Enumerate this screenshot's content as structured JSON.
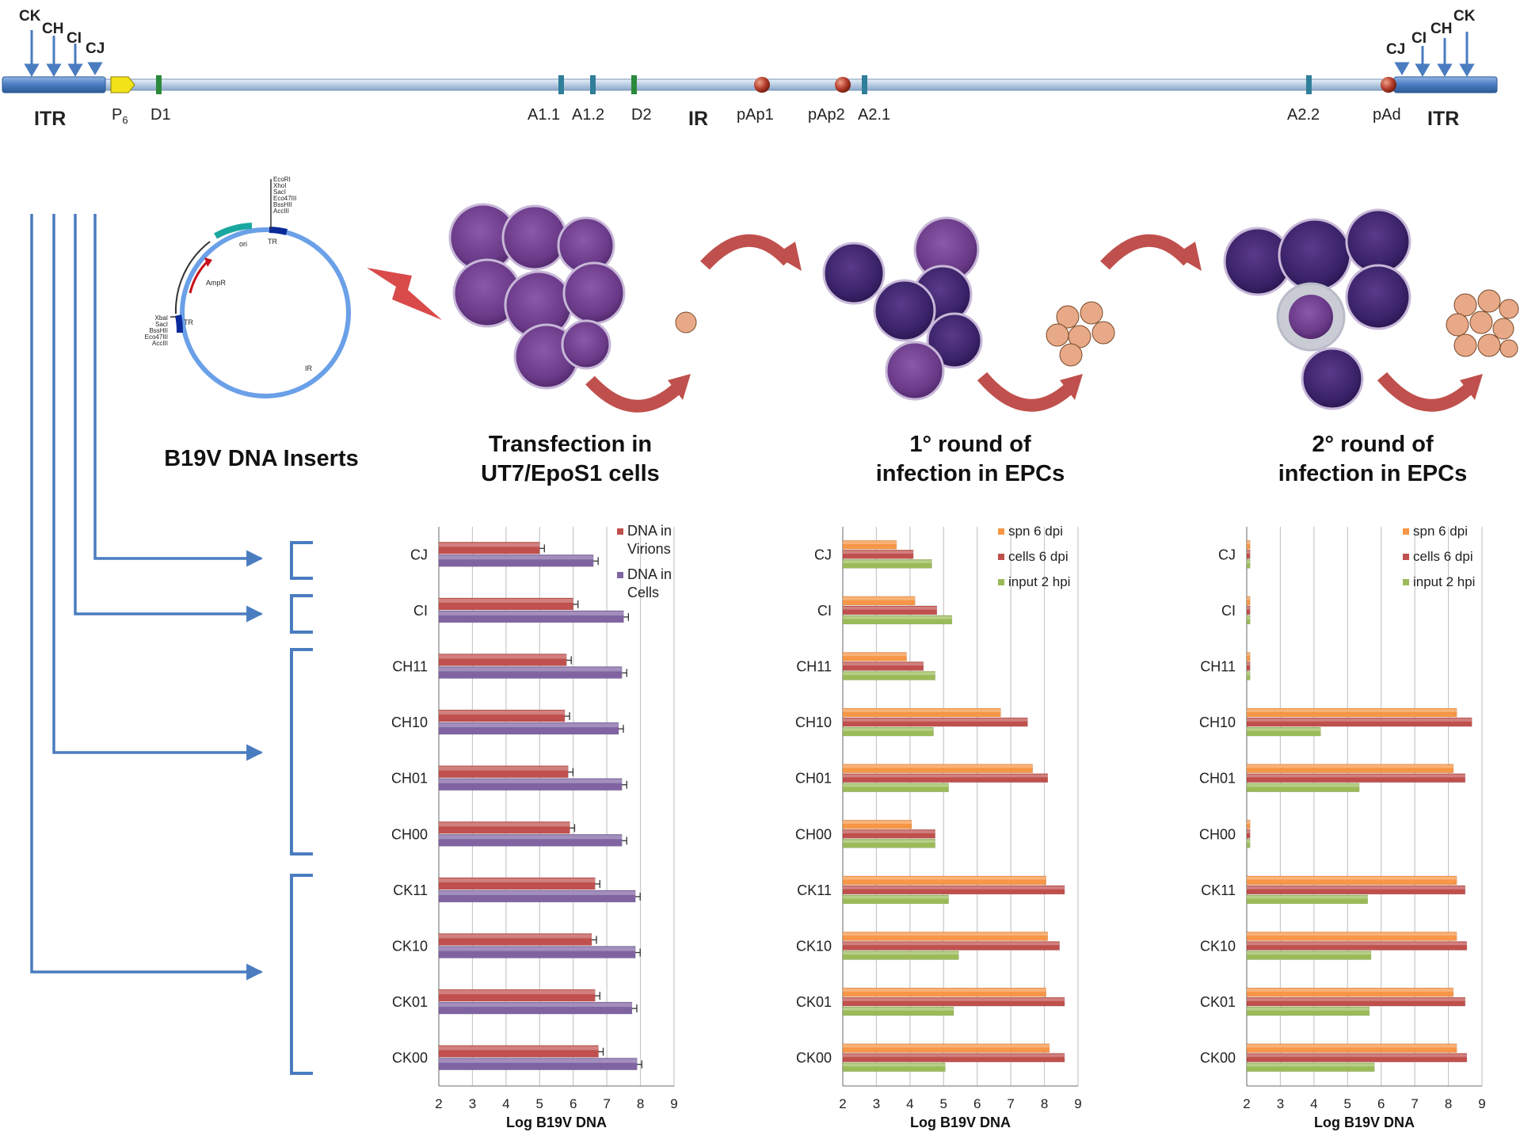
{
  "genome": {
    "itr_left": "ITR",
    "itr_right": "ITR",
    "p6": "P",
    "p6_sub": "6",
    "sites": [
      "D1",
      "A1.1",
      "A1.2",
      "D2",
      "IR",
      "pAp1",
      "pAp2",
      "A2.1",
      "A2.2",
      "pAd"
    ],
    "arrows_left": [
      "CK",
      "CH",
      "CI",
      "CJ"
    ],
    "arrows_right": [
      "CJ",
      "CI",
      "CH",
      "CK"
    ]
  },
  "plasmid": {
    "title": "B19V DNA Inserts",
    "top_sites": [
      "EcoRI",
      "XhoI",
      "SacI",
      "Eco47III",
      "BssHII",
      "AccIII"
    ],
    "left_sites": [
      "XbaI",
      "SacI",
      "BssHII",
      "Eco47III",
      "AccIII"
    ],
    "labels": {
      "ori": "ori",
      "tr_top": "TR",
      "tr_left": "TR",
      "ampr": "AmpR",
      "ir": "IR"
    }
  },
  "steps": [
    {
      "line1": "Transfection in",
      "line2": "UT7/EpoS1 cells"
    },
    {
      "line1": "1° round of",
      "line2": "infection in EPCs"
    },
    {
      "line1": "2° round of",
      "line2": "infection in EPCs"
    }
  ],
  "colors": {
    "blue": "#4a7cc0",
    "dna_virions": "#c0504d",
    "dna_cells": "#8064a2",
    "spn": "#f79646",
    "cells": "#c0504d",
    "input": "#9bbb59",
    "arrow_red": "#c0504d"
  },
  "chart_data": [
    {
      "type": "bar",
      "orientation": "horizontal",
      "categories": [
        "CJ",
        "CI",
        "CH11",
        "CH10",
        "CH01",
        "CH00",
        "CK11",
        "CK10",
        "CK01",
        "CK00"
      ],
      "series": [
        {
          "name": "DNA in Virions",
          "values": [
            5.0,
            6.0,
            5.8,
            5.75,
            5.85,
            5.9,
            6.65,
            6.55,
            6.65,
            6.75
          ]
        },
        {
          "name": "DNA in Cells",
          "values": [
            6.6,
            7.5,
            7.45,
            7.35,
            7.45,
            7.45,
            7.85,
            7.85,
            7.75,
            7.9
          ]
        }
      ],
      "xlabel": "Log B19V DNA",
      "xlim": [
        2,
        9
      ],
      "ticks": [
        2,
        3,
        4,
        5,
        6,
        7,
        8,
        9
      ],
      "legend": "top-right",
      "grid": true,
      "error_bars": true
    },
    {
      "type": "bar",
      "orientation": "horizontal",
      "categories": [
        "CJ",
        "CI",
        "CH11",
        "CH10",
        "CH01",
        "CH00",
        "CK11",
        "CK10",
        "CK01",
        "CK00"
      ],
      "series": [
        {
          "name": "spn 6 dpi",
          "values": [
            3.6,
            4.15,
            3.9,
            6.7,
            7.65,
            4.05,
            8.05,
            8.1,
            8.05,
            8.15
          ]
        },
        {
          "name": "cells 6 dpi",
          "values": [
            4.1,
            4.8,
            4.4,
            7.5,
            8.1,
            4.75,
            8.6,
            8.45,
            8.6,
            8.6
          ]
        },
        {
          "name": "input 2 hpi",
          "values": [
            4.65,
            5.25,
            4.75,
            4.7,
            5.15,
            4.75,
            5.15,
            5.45,
            5.3,
            5.05
          ]
        }
      ],
      "xlabel": "Log B19V DNA",
      "xlim": [
        2,
        9
      ],
      "ticks": [
        2,
        3,
        4,
        5,
        6,
        7,
        8,
        9
      ],
      "legend": "top-right",
      "grid": true
    },
    {
      "type": "bar",
      "orientation": "horizontal",
      "categories": [
        "CJ",
        "CI",
        "CH11",
        "CH10",
        "CH01",
        "CH00",
        "CK11",
        "CK10",
        "CK01",
        "CK00"
      ],
      "series": [
        {
          "name": "spn 6 dpi",
          "values": [
            2.1,
            2.1,
            2.1,
            8.25,
            8.15,
            2.1,
            8.25,
            8.25,
            8.15,
            8.25
          ]
        },
        {
          "name": "cells 6 dpi",
          "values": [
            2.1,
            2.1,
            2.1,
            8.7,
            8.5,
            2.1,
            8.5,
            8.55,
            8.5,
            8.55
          ]
        },
        {
          "name": "input 2 hpi",
          "values": [
            2.1,
            2.1,
            2.1,
            4.2,
            5.35,
            2.1,
            5.6,
            5.7,
            5.65,
            5.8
          ]
        }
      ],
      "xlabel": "Log B19V DNA",
      "xlim": [
        2,
        9
      ],
      "ticks": [
        2,
        3,
        4,
        5,
        6,
        7,
        8,
        9
      ],
      "legend": "top-right",
      "grid": true
    }
  ]
}
